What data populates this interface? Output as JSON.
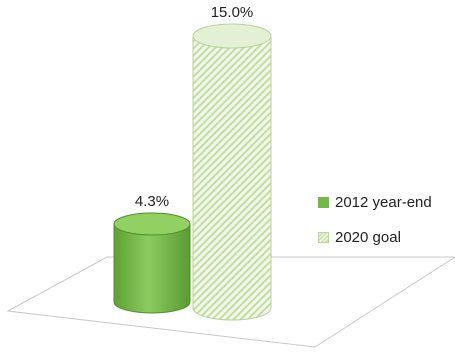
{
  "chart_data": {
    "type": "bar",
    "style": "3d-cylinder",
    "categories": [
      "2012 year-end",
      "2020 goal"
    ],
    "series": [
      {
        "name": "2012 year-end",
        "value": 4.3,
        "label": "4.3%",
        "color": "#72b84a",
        "pattern": "solid"
      },
      {
        "name": "2020 goal",
        "value": 15.0,
        "label": "15.0%",
        "color": "#c7dfad",
        "pattern": "diagonal-hatch"
      }
    ],
    "ylim": [
      0,
      15.0
    ],
    "grid": false,
    "legend_position": "right"
  }
}
